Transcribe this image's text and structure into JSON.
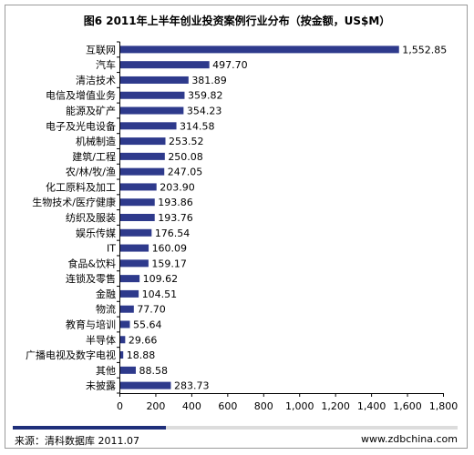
{
  "chart_data": {
    "type": "bar",
    "orientation": "horizontal",
    "title": "图6 2011年上半年创业投资案例行业分布（按金额，US$M）",
    "categories": [
      "互联网",
      "汽车",
      "清洁技术",
      "电信及增值业务",
      "能源及矿产",
      "电子及光电设备",
      "机械制造",
      "建筑/工程",
      "农/林/牧/渔",
      "化工原料及加工",
      "生物技术/医疗健康",
      "纺织及服装",
      "娱乐传媒",
      "IT",
      "食品&饮料",
      "连锁及零售",
      "金融",
      "物流",
      "教育与培训",
      "半导体",
      "广播电视及数字电视",
      "其他",
      "未披露"
    ],
    "values": [
      1552.85,
      497.7,
      381.89,
      359.82,
      354.23,
      314.58,
      253.52,
      250.08,
      247.05,
      203.9,
      193.86,
      193.76,
      176.54,
      160.09,
      159.17,
      109.62,
      104.51,
      77.7,
      55.64,
      29.66,
      18.88,
      88.58,
      283.73
    ],
    "value_labels": [
      "1,552.85",
      "497.70",
      "381.89",
      "359.82",
      "354.23",
      "314.58",
      "253.52",
      "250.08",
      "247.05",
      "203.90",
      "193.86",
      "193.76",
      "176.54",
      "160.09",
      "159.17",
      "109.62",
      "104.51",
      "77.70",
      "55.64",
      "29.66",
      "18.88",
      "88.58",
      "283.73"
    ],
    "xlim": [
      0,
      1800
    ],
    "xticks": [
      0,
      200,
      400,
      600,
      800,
      1000,
      1200,
      1400,
      1600,
      1800
    ],
    "xtick_labels": [
      "0",
      "200",
      "400",
      "600",
      "800",
      "1,000",
      "1,200",
      "1,400",
      "1,600",
      "1,800"
    ],
    "grid": false,
    "legend": "none",
    "bar_color": "#2e3a8c"
  },
  "footer": {
    "source": "来源：清科数据库 2011.07",
    "site": "www.zdbchina.com",
    "accent_color": "#1f2f7a"
  }
}
